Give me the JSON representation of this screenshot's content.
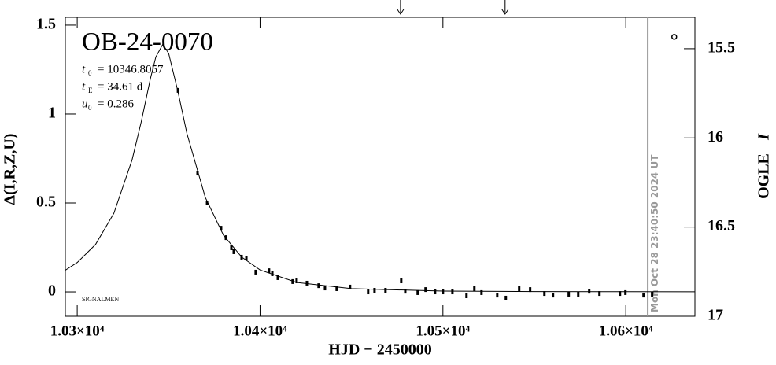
{
  "chart_data": {
    "type": "scatter",
    "title": "OB-24-0070",
    "params": [
      {
        "symbol": "t",
        "sub": "0",
        "text": "= 10346.8057"
      },
      {
        "symbol": "t",
        "sub": "E",
        "text": "= 34.61  d"
      },
      {
        "symbol": "u",
        "sub": "0",
        "text": "= 0.286"
      }
    ],
    "footer_label": "SIGNALMEN",
    "xlabel": "HJD  −  2450000",
    "ylabel": "Δ(I,R,Z,U)",
    "y2label": {
      "text": "OGLE",
      "italic": "I"
    },
    "xlim": [
      10293.5,
      10637.8
    ],
    "ylim": [
      -0.137,
      1.544
    ],
    "y2lim": [
      17,
      15.324
    ],
    "xticks": [
      {
        "value": 10300,
        "label": "1.03×10⁴"
      },
      {
        "value": 10400,
        "label": "1.04×10⁴"
      },
      {
        "value": 10500,
        "label": "1.05×10⁴"
      },
      {
        "value": 10600,
        "label": "1.06×10⁴"
      }
    ],
    "yticks": [
      0,
      0.5,
      1,
      1.5
    ],
    "y2ticks": [
      15.5,
      16,
      16.5,
      17
    ],
    "points": {
      "color": "#000000",
      "x": [
        10355.1,
        10365.8,
        10371.0,
        10378.7,
        10381.3,
        10384.3,
        10385.6,
        10389.9,
        10392.5,
        10397.6,
        10404.9,
        10406.7,
        10409.7,
        10417.8,
        10420.0,
        10425.6,
        10432.0,
        10435.5,
        10441.9,
        10449.2,
        10459.1,
        10462.6,
        10468.6,
        10477.2,
        10479.4,
        10486.2,
        10490.5,
        10495.7,
        10500.0,
        10505.2,
        10512.9,
        10517.2,
        10521.1,
        10529.7,
        10534.4,
        10541.7,
        10547.7,
        10555.5,
        10560.2,
        10568.8,
        10574.0,
        10580.0,
        10585.6,
        10596.8,
        10599.8,
        10609.7,
        10614.4
      ],
      "values": [
        1.133,
        0.668,
        0.5,
        0.358,
        0.305,
        0.248,
        0.226,
        0.195,
        0.19,
        0.111,
        0.119,
        0.102,
        0.08,
        0.058,
        0.062,
        0.049,
        0.035,
        0.022,
        0.018,
        0.027,
        0.0,
        0.009,
        0.009,
        0.062,
        0.004,
        -0.004,
        0.013,
        0.0,
        0.0,
        0.0,
        -0.022,
        0.018,
        -0.004,
        -0.018,
        -0.035,
        0.018,
        0.013,
        -0.009,
        -0.018,
        -0.013,
        -0.013,
        0.004,
        -0.009,
        -0.009,
        -0.004,
        -0.018,
        -0.013
      ]
    },
    "model": {
      "color": "#000000",
      "x": [
        10293.5,
        10300,
        10310,
        10320,
        10330,
        10335,
        10340,
        10343,
        10346.8,
        10350,
        10355,
        10360,
        10370,
        10380,
        10390,
        10400,
        10420,
        10450,
        10500,
        10550,
        10600,
        10637.8
      ],
      "values": [
        0.122,
        0.165,
        0.266,
        0.441,
        0.742,
        0.955,
        1.197,
        1.321,
        1.392,
        1.341,
        1.13,
        0.891,
        0.532,
        0.318,
        0.195,
        0.123,
        0.053,
        0.0183,
        0.0047,
        0.0018,
        0.0008,
        0.0004
      ]
    },
    "current_point": {
      "x": 10626.5,
      "y": 1.434
    },
    "arrows_x": [
      10476.8,
      10534.0
    ],
    "date_line": {
      "x": 10611.8,
      "label": "Mon Oct 28 23:40:50 2024 UT",
      "color": "#999999"
    }
  }
}
